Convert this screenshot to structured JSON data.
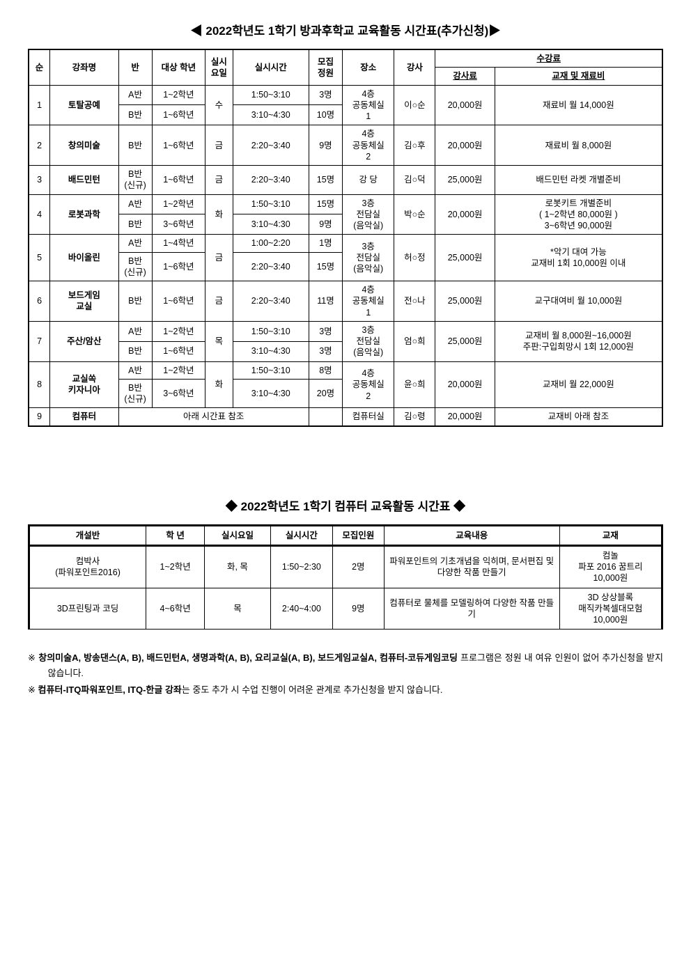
{
  "title_main": "◀ 2022학년도 1학기 방과후학교 교육활동 시간표(추가신청)▶",
  "main_headers": {
    "seq": "순",
    "course": "강좌명",
    "class": "반",
    "grade": "대상 학년",
    "day_wrap": "실시\n요일",
    "time": "실시시간",
    "cap_wrap": "모집\n정원",
    "place": "장소",
    "teacher": "강사",
    "fee_group": "수강료",
    "fee_tuition": "강사료",
    "fee_material": "교재 및 재료비"
  },
  "rows": [
    {
      "seq": "1",
      "course": "토탈공예",
      "sub": [
        {
          "class": "A반",
          "grade": "1~2학년",
          "time": "1:50~3:10",
          "cap": "3명"
        },
        {
          "class": "B반",
          "grade": "1~6학년",
          "time": "3:10~4:30",
          "cap": "10명"
        }
      ],
      "day": "수",
      "place": "4층\n공동체실\n1",
      "teacher": "이○순",
      "tuition": "20,000원",
      "material": "재료비 월 14,000원"
    },
    {
      "seq": "2",
      "course": "창의미술",
      "sub": [
        {
          "class": "B반",
          "grade": "1~6학년",
          "time": "2:20~3:40",
          "cap": "9명"
        }
      ],
      "day": "금",
      "place": "4층\n공동체실\n2",
      "teacher": "김○후",
      "tuition": "20,000원",
      "material": "재료비 월 8,000원"
    },
    {
      "seq": "3",
      "course": "배드민턴",
      "sub": [
        {
          "class": "B반\n(신규)",
          "grade": "1~6학년",
          "time": "2:20~3:40",
          "cap": "15명"
        }
      ],
      "day": "금",
      "place": "강 당",
      "teacher": "김○덕",
      "tuition": "25,000원",
      "material": "배드민턴 라켓 개별준비"
    },
    {
      "seq": "4",
      "course": "로봇과학",
      "sub": [
        {
          "class": "A반",
          "grade": "1~2학년",
          "time": "1:50~3:10",
          "cap": "15명"
        },
        {
          "class": "B반",
          "grade": "3~6학년",
          "time": "3:10~4:30",
          "cap": "9명"
        }
      ],
      "day": "화",
      "place": "3층\n전담실\n(음악실)",
      "teacher": "박○순",
      "tuition": "20,000원",
      "material": "로봇키트 개별준비\n( 1~2학년 80,000원 )\n  3~6학년 90,000원"
    },
    {
      "seq": "5",
      "course": "바이올린",
      "sub": [
        {
          "class": "A반",
          "grade": "1~4학년",
          "time": "1:00~2:20",
          "cap": "1명"
        },
        {
          "class": "B반\n(신규)",
          "grade": "1~6학년",
          "time": "2:20~3:40",
          "cap": "15명"
        }
      ],
      "day": "금",
      "place": "3층\n전담실\n(음악실)",
      "teacher": "허○정",
      "tuition": "25,000원",
      "material": "*악기 대여 가능\n교재비 1회 10,000원 이내"
    },
    {
      "seq": "6",
      "course": "보드게임\n교실",
      "sub": [
        {
          "class": "B반",
          "grade": "1~6학년",
          "time": "2:20~3:40",
          "cap": "11명"
        }
      ],
      "day": "금",
      "place": "4층\n공동체실\n1",
      "teacher": "전○나",
      "tuition": "25,000원",
      "material": "교구대여비 월 10,000원"
    },
    {
      "seq": "7",
      "course": "주산/암산",
      "sub": [
        {
          "class": "A반",
          "grade": "1~2학년",
          "time": "1:50~3:10",
          "cap": "3명"
        },
        {
          "class": "B반",
          "grade": "1~6학년",
          "time": "3:10~4:30",
          "cap": "3명"
        }
      ],
      "day": "목",
      "place": "3층\n전담실\n(음악실)",
      "teacher": "엄○희",
      "tuition": "25,000원",
      "material": "교재비 월 8,000원~16,000원\n주판:구입희망시 1회 12,000원"
    },
    {
      "seq": "8",
      "course": "교실쏙\n키자니아",
      "sub": [
        {
          "class": "A반",
          "grade": "1~2학년",
          "time": "1:50~3:10",
          "cap": "8명"
        },
        {
          "class": "B반\n(신규)",
          "grade": "3~6학년",
          "time": "3:10~4:30",
          "cap": "20명"
        }
      ],
      "day": "화",
      "place": "4층\n공동체실\n2",
      "teacher": "윤○희",
      "tuition": "20,000원",
      "material": "교재비 월 22,000원"
    },
    {
      "seq": "9",
      "course": "컴퓨터",
      "span_text": "아래 시간표 참조",
      "cap_text": "",
      "place": "컴퓨터실",
      "teacher": "김○령",
      "tuition": "20,000원",
      "material": "교재비 아래 참조"
    }
  ],
  "title_comp": "◆ 2022학년도 1학기 컴퓨터 교육활동 시간표 ◆",
  "comp_headers": {
    "class": "개설반",
    "grade": "학 년",
    "day": "실시요일",
    "time": "실시시간",
    "cap": "모집인원",
    "content": "교육내용",
    "book": "교재"
  },
  "comp_rows": [
    {
      "class": "컴박사\n(파워포인트2016)",
      "grade": "1~2학년",
      "day": "화, 목",
      "time": "1:50~2:30",
      "cap": "2명",
      "content": "파워포인트의 기초개념을 익히며, 문서편집 및 다양한 작품 만들기",
      "book": "컴놀\n파포 2016 꿈트리\n10,000원"
    },
    {
      "class": "3D프린팅과 코딩",
      "grade": "4~6학년",
      "day": "목",
      "time": "2:40~4:00",
      "cap": "9명",
      "content": "컴퓨터로 물체를 모델링하여 다양한 작품 만들기",
      "book": "3D 상상블록\n매직카복셀대모험\n10,000원"
    }
  ],
  "notes": [
    "※ 창의미술A, 방송댄스(A, B), 배드민턴A, 생명과학(A, B), 요리교실(A, B), 보드게임교실A, 컴퓨터-코듀게임코딩 프로그램은 정원 내 여유 인원이 없어 추가신청을 받지 않습니다.",
    "※ 컴퓨터-ITQ파워포인트, ITQ-한글 강좌는 중도 추가 시 수업 진행이 어려운 관계로 추가신청을 받지 않습니다."
  ],
  "note_bold": {
    "0": [
      "창의미술A, 방송댄스(A, B), 배드민턴A, 생명과학(A, B), 요리교실(A, B), 보드게임교실A, 컴퓨터-코듀게임코딩"
    ],
    "1": [
      "컴퓨터-ITQ파워포인트, ITQ-한글 강좌"
    ]
  },
  "col_widths_main": [
    28,
    90,
    44,
    70,
    36,
    100,
    44,
    68,
    54,
    78,
    220
  ],
  "col_widths_comp": [
    160,
    80,
    90,
    85,
    70,
    240,
    140
  ]
}
